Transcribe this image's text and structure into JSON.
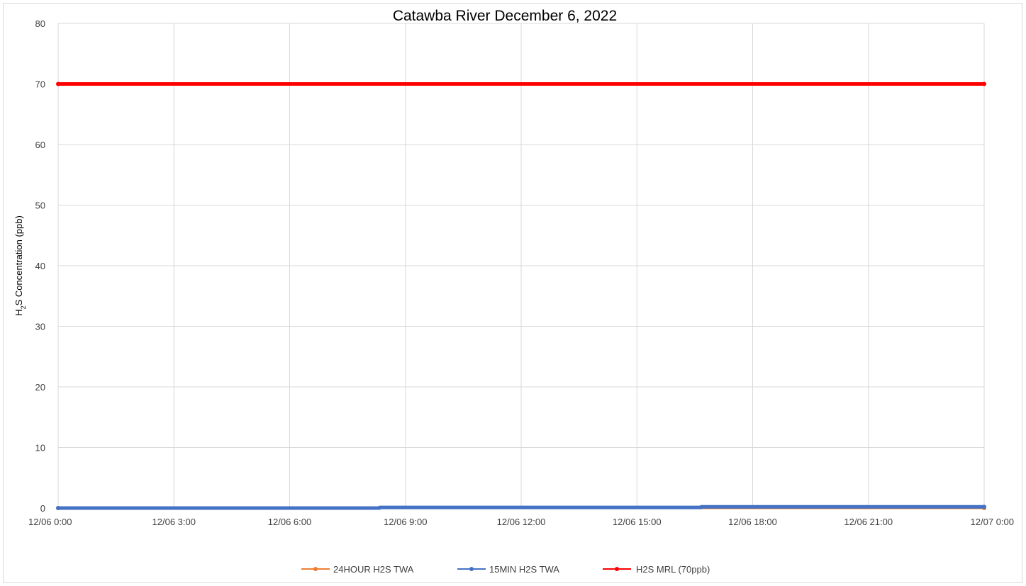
{
  "chart_data": {
    "type": "line",
    "title": "Catawba River December 6, 2022",
    "xlabel": "",
    "ylabel": {
      "prefix": "H",
      "subscript": "2",
      "suffix": "S Concentration (ppb)"
    },
    "ylim": [
      0,
      80
    ],
    "yticks": [
      0,
      10,
      20,
      30,
      40,
      50,
      60,
      70,
      80
    ],
    "xlim": [
      "2022-12-06T00:00",
      "2022-12-07T00:00"
    ],
    "xticks": [
      {
        "value": "2022-12-06T00:00",
        "label": "12/06 0:00"
      },
      {
        "value": "2022-12-06T03:00",
        "label": "12/06 3:00"
      },
      {
        "value": "2022-12-06T06:00",
        "label": "12/06 6:00"
      },
      {
        "value": "2022-12-06T09:00",
        "label": "12/06 9:00"
      },
      {
        "value": "2022-12-06T12:00",
        "label": "12/06 12:00"
      },
      {
        "value": "2022-12-06T15:00",
        "label": "12/06 15:00"
      },
      {
        "value": "2022-12-06T18:00",
        "label": "12/06 18:00"
      },
      {
        "value": "2022-12-06T21:00",
        "label": "12/06 21:00"
      },
      {
        "value": "2022-12-07T00:00",
        "label": "12/07 0:00"
      }
    ],
    "grid": true,
    "legend_position": "bottom",
    "series": [
      {
        "name": "24HOUR H2S TWA",
        "color": "#ed7d31",
        "x": [
          "2022-12-06T00:00",
          "2022-12-07T00:00"
        ],
        "y": [
          0,
          0
        ]
      },
      {
        "name": "15MIN H2S TWA",
        "color": "#4472c4",
        "x": [
          "2022-12-06T00:00",
          "2022-12-06T08:20",
          "2022-12-06T08:20",
          "2022-12-06T16:40",
          "2022-12-06T16:40",
          "2022-12-07T00:00"
        ],
        "y": [
          0,
          0,
          0.1,
          0.1,
          0.2,
          0.2
        ]
      },
      {
        "name": "H2S MRL (70ppb)",
        "color": "#ff0000",
        "x": [
          "2022-12-06T00:00",
          "2022-12-07T00:00"
        ],
        "y": [
          70,
          70
        ]
      }
    ]
  }
}
